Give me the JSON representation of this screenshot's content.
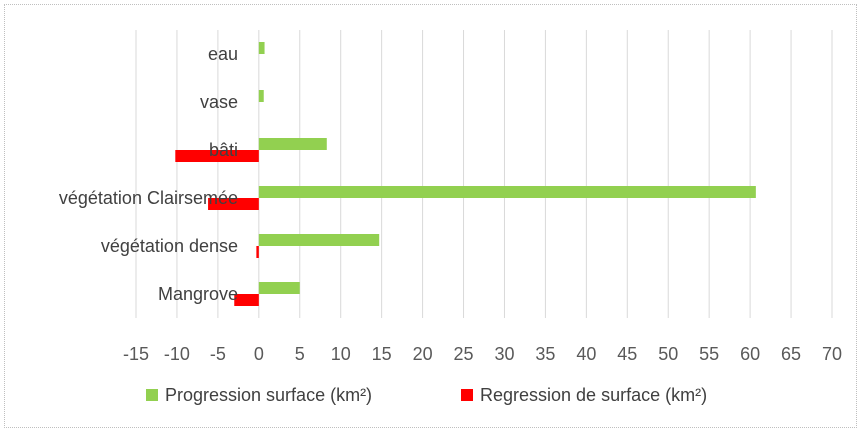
{
  "chart_data": {
    "type": "bar",
    "orientation": "horizontal",
    "categories": [
      "Mangrove",
      "végétation dense",
      "végétation Clairsemée",
      "bâti",
      "vase",
      "eau"
    ],
    "series": [
      {
        "name": "Progression surface (km²)",
        "color": "#92d050",
        "values": [
          5.0,
          14.7,
          60.7,
          8.3,
          0.6,
          0.7
        ]
      },
      {
        "name": "Regression de surface (km²)",
        "color": "#ff0000",
        "values": [
          -3.0,
          -0.3,
          -6.2,
          -10.2,
          0,
          0
        ]
      }
    ],
    "xlim": [
      -15,
      70
    ],
    "x_ticks": [
      -15,
      -10,
      -5,
      0,
      5,
      10,
      15,
      20,
      25,
      30,
      35,
      40,
      45,
      50,
      55,
      60,
      65,
      70
    ],
    "grid": true,
    "legend": "bottom",
    "title": "",
    "xlabel": "",
    "ylabel": ""
  }
}
